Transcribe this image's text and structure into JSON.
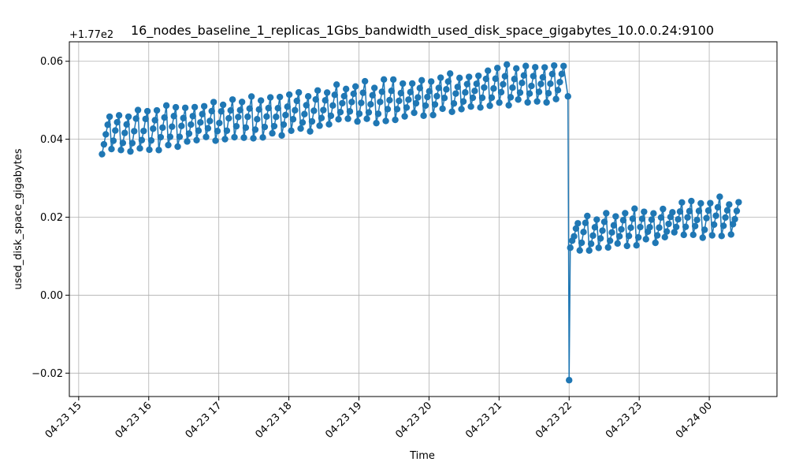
{
  "chart_data": {
    "type": "line",
    "title": "16_nodes_baseline_1_replicas_1Gbs_bandwidth_used_disk_space_gigabytes_10.0.0.24:9100",
    "xlabel": "Time",
    "ylabel": "used_disk_space_gigabytes",
    "y_offset_label": "+1.77e2",
    "y_offset": 177,
    "xlim": [
      "04-23 14:52",
      "04-24 00:58"
    ],
    "ylim": [
      -0.026,
      0.065
    ],
    "grid": true,
    "color": "#1f77b4",
    "x_ticks": [
      {
        "value": "04-23 15:00",
        "label": "04-23 15"
      },
      {
        "value": "04-23 16:00",
        "label": "04-23 16"
      },
      {
        "value": "04-23 17:00",
        "label": "04-23 17"
      },
      {
        "value": "04-23 18:00",
        "label": "04-23 18"
      },
      {
        "value": "04-23 19:00",
        "label": "04-23 19"
      },
      {
        "value": "04-23 20:00",
        "label": "04-23 20"
      },
      {
        "value": "04-23 21:00",
        "label": "04-23 21"
      },
      {
        "value": "04-23 22:00",
        "label": "04-23 22"
      },
      {
        "value": "04-23 23:00",
        "label": "04-23 23"
      },
      {
        "value": "04-24 00:00",
        "label": "04-24 00"
      }
    ],
    "y_ticks": [
      {
        "value": -0.02,
        "label": "−0.02"
      },
      {
        "value": 0.0,
        "label": "0.00"
      },
      {
        "value": 0.02,
        "label": "0.02"
      },
      {
        "value": 0.04,
        "label": "0.04"
      },
      {
        "value": 0.06,
        "label": "0.06"
      }
    ],
    "series": [
      {
        "segments": [
          {
            "start": "04-23 15:20",
            "end": "04-23 21:59",
            "y_start_low": 0.0365,
            "y_start_high": 0.046,
            "y_end_low": 0.051,
            "y_end_high": 0.06
          },
          {
            "start": "04-23 22:01",
            "end": "04-24 00:28",
            "y_start_low": 0.0115,
            "y_start_high": 0.0195,
            "y_end_low": 0.017,
            "y_end_high": 0.025
          }
        ],
        "drop_point": {
          "x": "04-23 22:00",
          "y": -0.0218
        }
      }
    ]
  }
}
